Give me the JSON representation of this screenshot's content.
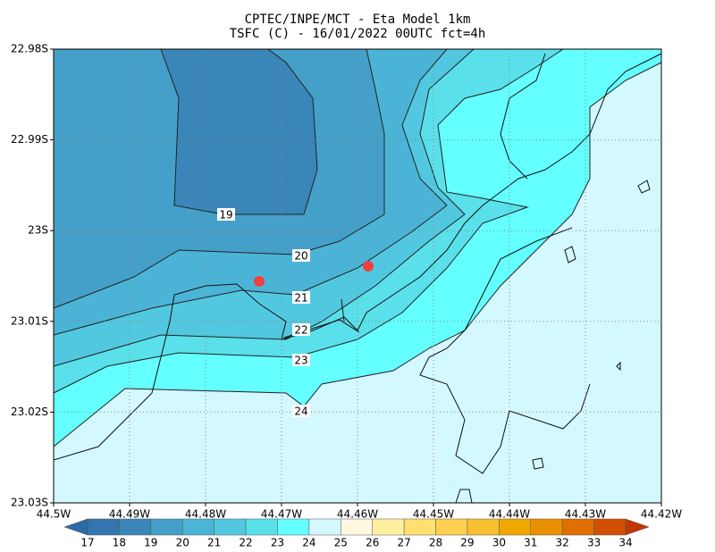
{
  "header": {
    "line1": "CPTEC/INPE/MCT -  Eta Model 1km",
    "line2": "TSFC (C) - 16/01/2022 00UTC fct=4h"
  },
  "axes": {
    "y_labels": [
      "22.98S",
      "22.99S",
      "23S",
      "23.01S",
      "23.02S",
      "23.03S"
    ],
    "x_labels": [
      "44.5W",
      "44.49W",
      "44.48W",
      "44.47W",
      "44.46W",
      "44.45W",
      "44.44W",
      "44.43W",
      "44.42W"
    ]
  },
  "contour_labels": [
    "19",
    "20",
    "21",
    "22",
    "23",
    "24"
  ],
  "colorbar": {
    "labels": [
      "17",
      "18",
      "19",
      "20",
      "21",
      "22",
      "23",
      "24",
      "25",
      "26",
      "27",
      "28",
      "29",
      "30",
      "31",
      "32",
      "33",
      "34"
    ],
    "colors": [
      "#2b6aa6",
      "#3375ae",
      "#3a86b8",
      "#44a0c8",
      "#4bb4d6",
      "#52c8e0",
      "#5ae0ea",
      "#64ffff",
      "#d4f8ff",
      "#fff8e0",
      "#fff0a0",
      "#ffe070",
      "#ffd050",
      "#f8c030",
      "#f0a800",
      "#e89000",
      "#e07000",
      "#d05000",
      "#c03800"
    ]
  }
}
